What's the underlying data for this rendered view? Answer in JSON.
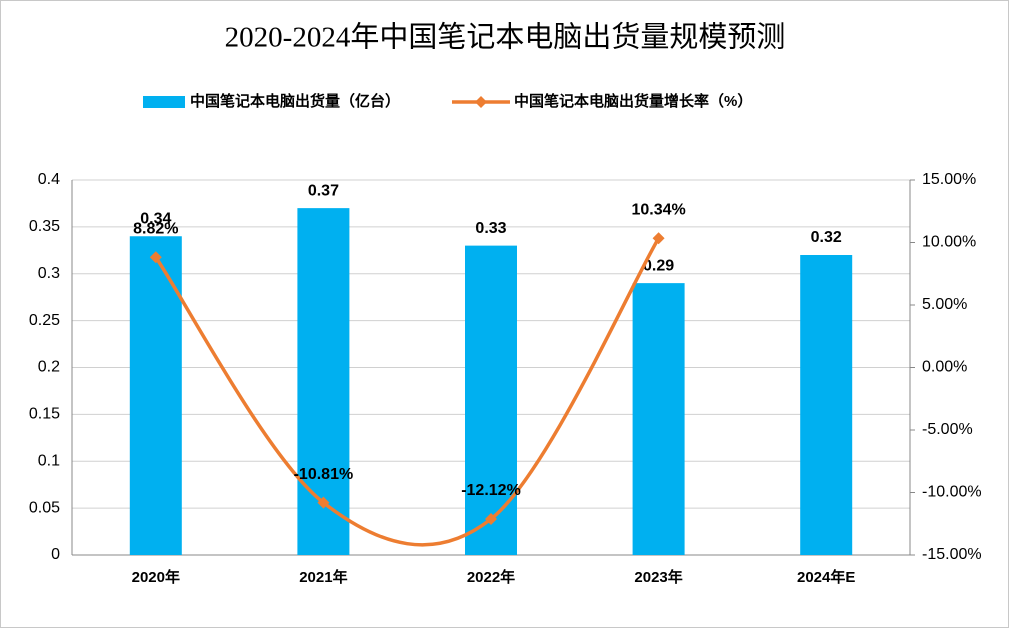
{
  "chart_data": {
    "type": "bar_line",
    "title": "2020-2024年中国笔记本电脑出货量规模预测",
    "categories": [
      "2020年",
      "2021年",
      "2022年",
      "2023年",
      "2024年E"
    ],
    "series": [
      {
        "name": "中国笔记本电脑出货量（亿台）",
        "type": "bar",
        "color": "#00b0f0",
        "values": [
          0.34,
          0.37,
          0.33,
          0.29,
          0.32
        ]
      },
      {
        "name": "中国笔记本电脑出货量增长率（%）",
        "type": "line",
        "color": "#ed7d31",
        "axis": "y2",
        "values": [
          8.82,
          -10.81,
          -12.12,
          10.34,
          null
        ],
        "value_labels": [
          "8.82%",
          "-10.81%",
          "-12.12%",
          "10.34%",
          null
        ]
      }
    ],
    "ylim": [
      0,
      0.4
    ],
    "yticks": [
      0,
      0.05,
      0.1,
      0.15,
      0.2,
      0.25,
      0.3,
      0.35,
      0.4
    ],
    "y2lim": [
      -15,
      15
    ],
    "y2ticks": [
      {
        "value": -15,
        "label": "-15.00%"
      },
      {
        "value": -10,
        "label": "-10.00%"
      },
      {
        "value": -5,
        "label": "-5.00%"
      },
      {
        "value": 0,
        "label": "0.00%"
      },
      {
        "value": 5,
        "label": "5.00%"
      },
      {
        "value": 10,
        "label": "10.00%"
      },
      {
        "value": 15,
        "label": "15.00%"
      }
    ],
    "grid": true,
    "legend": "top"
  }
}
